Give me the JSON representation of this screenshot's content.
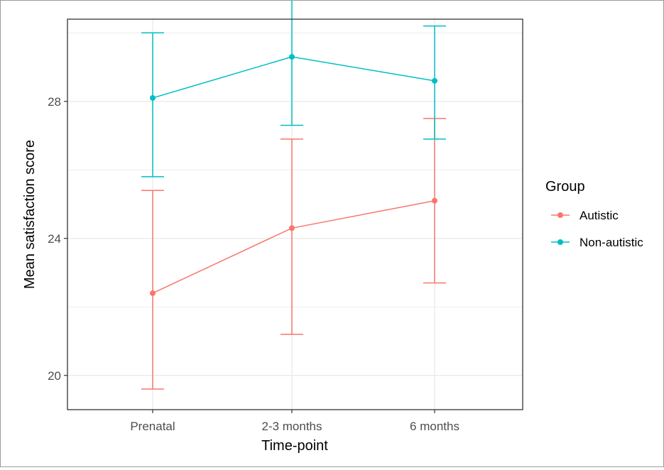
{
  "chart_data": {
    "type": "line",
    "xlabel": "Time-point",
    "ylabel": "Mean satisfaction score",
    "categories": [
      "Prenatal",
      "2-3 months",
      "6 months"
    ],
    "yticks": [
      20,
      24,
      28
    ],
    "ylim": [
      19.0,
      30.4
    ],
    "grid": true,
    "error_bars": true,
    "legend": {
      "title": "Group",
      "position": "right"
    },
    "series": [
      {
        "name": "Autistic",
        "color": "#F8766D",
        "values": [
          22.4,
          24.3,
          25.1
        ],
        "lower": [
          19.6,
          21.2,
          22.7
        ],
        "upper": [
          25.4,
          26.9,
          27.5
        ]
      },
      {
        "name": "Non-autistic",
        "color": "#00BFC4",
        "values": [
          28.1,
          29.3,
          28.6
        ],
        "lower": [
          25.8,
          27.3,
          26.9
        ],
        "upper": [
          30.0,
          31.1,
          30.2
        ]
      }
    ]
  }
}
